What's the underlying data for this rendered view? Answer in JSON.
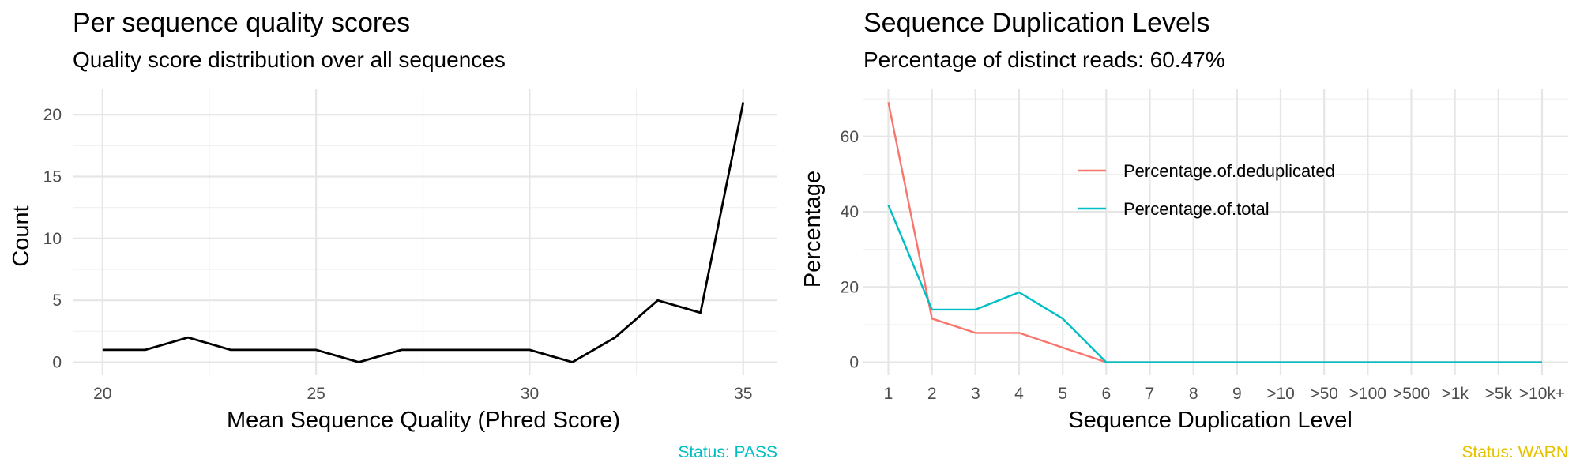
{
  "chart_data": [
    {
      "type": "line",
      "title": "Per sequence quality scores",
      "subtitle": "Quality score distribution over all sequences",
      "xlabel": "Mean Sequence Quality (Phred Score)",
      "ylabel": "Count",
      "x": [
        20,
        21,
        22,
        23,
        24,
        25,
        26,
        27,
        28,
        29,
        30,
        31,
        32,
        33,
        34,
        35
      ],
      "series": [
        {
          "values": [
            1,
            1,
            2,
            1,
            1,
            1,
            0,
            1,
            1,
            1,
            1,
            0,
            2,
            5,
            4,
            21
          ],
          "color": "#000000"
        }
      ],
      "xlim": [
        19.3,
        35.8
      ],
      "ylim": [
        -1.05,
        22.05
      ],
      "xticks": [
        20,
        25,
        30,
        35
      ],
      "xticks_minor": [
        22.5,
        27.5,
        32.5
      ],
      "yticks": [
        0,
        5,
        10,
        15,
        20
      ],
      "yticks_minor": [
        2.5,
        7.5,
        12.5,
        17.5
      ],
      "grid": true,
      "status": "Status: PASS",
      "status_color": "#00BFC4"
    },
    {
      "type": "line",
      "title": "Sequence Duplication Levels",
      "subtitle": "Percentage of distinct reads: 60.47%",
      "xlabel": "Sequence Duplication Level",
      "ylabel": "Percentage",
      "categories": [
        "1",
        "2",
        "3",
        "4",
        "5",
        "6",
        "7",
        "8",
        "9",
        ">10",
        ">50",
        ">100",
        ">500",
        ">1k",
        ">5k",
        ">10k+"
      ],
      "series": [
        {
          "name": "Percentage.of.deduplicated",
          "values": [
            69.1,
            11.6,
            7.8,
            7.8,
            3.9,
            0,
            0,
            0,
            0,
            0,
            0,
            0,
            0,
            0,
            0,
            0
          ],
          "color": "#F8766D"
        },
        {
          "name": "Percentage.of.total",
          "values": [
            41.8,
            14.0,
            14.0,
            18.6,
            11.6,
            0,
            0,
            0,
            0,
            0,
            0,
            0,
            0,
            0,
            0,
            0
          ],
          "color": "#00BFC4"
        }
      ],
      "ylim": [
        -3.45,
        72.55
      ],
      "yticks": [
        0,
        20,
        40,
        60
      ],
      "yticks_minor": [
        10,
        30,
        50,
        70
      ],
      "grid": true,
      "legend_position": "inside-top-center",
      "status": "Status: WARN",
      "status_color": "#E5C100"
    }
  ]
}
